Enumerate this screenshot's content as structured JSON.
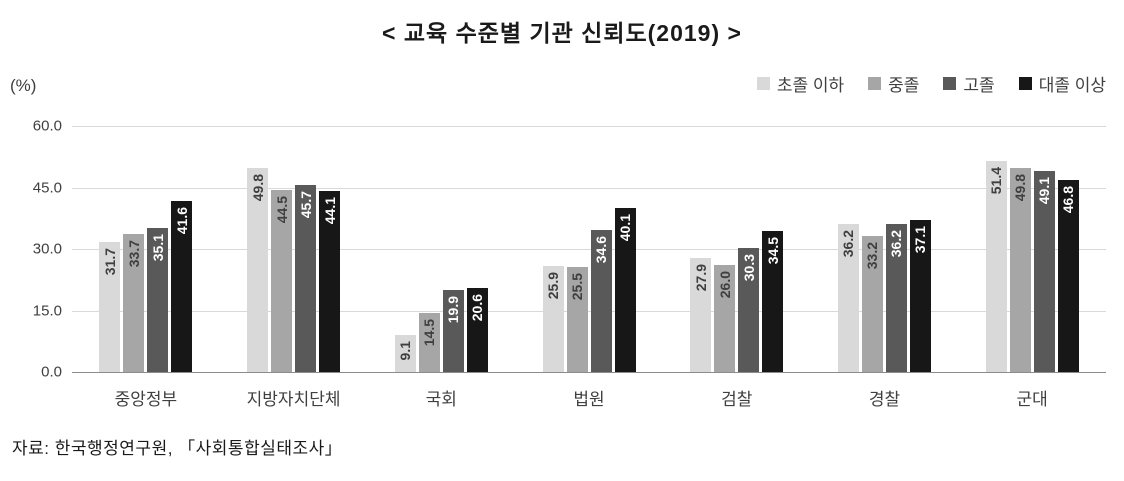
{
  "title": "< 교육 수준별 기관 신뢰도(2019) >",
  "y_axis": {
    "unit_label": "(%)"
  },
  "source": "자료: 한국행정연구원, 「사회통합실태조사」",
  "chart_data": {
    "type": "bar",
    "title": "< 교육 수준별 기관 신뢰도(2019) >",
    "ylabel": "(%)",
    "ylim": [
      0,
      60
    ],
    "yticks": [
      0,
      15,
      30,
      45,
      60
    ],
    "grid": true,
    "legend_position": "top-right",
    "categories": [
      "중앙정부",
      "지방자치단체",
      "국회",
      "법원",
      "검찰",
      "경찰",
      "군대"
    ],
    "series": [
      {
        "name": "초졸 이하",
        "color": "#d9d9d9",
        "label_color": "#3f3f3f",
        "values": [
          31.7,
          49.8,
          9.1,
          25.9,
          27.9,
          36.2,
          51.4
        ]
      },
      {
        "name": "중졸",
        "color": "#a6a6a6",
        "label_color": "#3f3f3f",
        "values": [
          33.7,
          44.5,
          14.5,
          25.5,
          26.0,
          33.2,
          49.8
        ]
      },
      {
        "name": "고졸",
        "color": "#595959",
        "label_color": "#ffffff",
        "values": [
          35.1,
          45.7,
          19.9,
          34.6,
          30.3,
          36.2,
          49.1
        ]
      },
      {
        "name": "대졸 이상",
        "color": "#171717",
        "label_color": "#ffffff",
        "values": [
          41.6,
          44.1,
          20.6,
          40.1,
          34.5,
          37.1,
          46.8
        ]
      }
    ]
  }
}
